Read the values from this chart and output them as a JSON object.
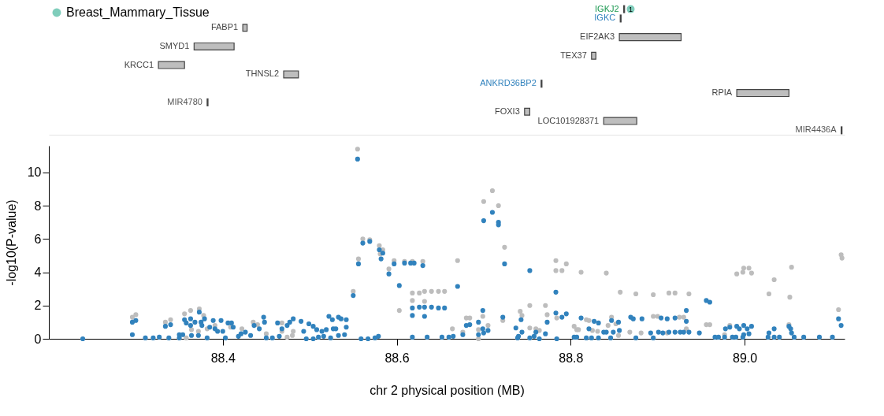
{
  "chart_data": [
    {
      "type": "bar",
      "orientation": "horizontal",
      "xlim": [
        88.2,
        89.115
      ],
      "tick_labels": false,
      "legend": "top left",
      "grid": false,
      "categories": [
        "IGKJ2",
        "IGKC",
        "FABP1",
        "EIF2AK3",
        "SMYD1",
        "TEX37",
        "KRCC1",
        "THNSL2",
        "ANKRD36BP2",
        "RPIA",
        "MIR4780",
        "FOXI3",
        "LOC101928371",
        "MIR4436A"
      ],
      "series": [
        {
          "type": "bar",
          "base": [
            88.861,
            88.857,
            88.423,
            88.856,
            88.367,
            88.824,
            88.326,
            88.47,
            88.766,
            88.991,
            88.382,
            88.747,
            88.838,
            89.111
          ],
          "values": [
            0.001,
            0.001,
            0.005,
            0.071,
            0.046,
            0.005,
            0.03,
            0.017,
            0.001,
            0.06,
            0.001,
            0.006,
            0.038,
            0.001
          ],
          "colors": [
            "#1a9850",
            "#3182bd",
            "#bebebe",
            "#bebebe",
            "#bebebe",
            "#bebebe",
            "#bebebe",
            "#bebebe",
            "#3182bd",
            "#bebebe",
            "#555555",
            "#bebebe",
            "#bebebe",
            "#555555"
          ]
        },
        {
          "type": "scatter",
          "name": "Breast_Mammary_Tissue",
          "color": "#7fcdbb",
          "values": [
            88.869,
            null,
            null,
            null,
            null,
            null,
            null,
            null,
            null,
            null,
            null,
            null,
            null,
            null
          ]
        }
      ],
      "annotations": [
        {
          "text": "1",
          "x": 88.869,
          "y": "IGKJ2"
        }
      ]
    },
    {
      "type": "scatter",
      "marker": "circle",
      "grid": false,
      "xlabel": "chr 2 physical position (MB)",
      "ylabel": "-log10(P-value)",
      "xlim": [
        88.2,
        89.115
      ],
      "xticks": [
        88.4,
        88.6,
        88.8,
        {
          "value": 89,
          "label": "89.0"
        }
      ],
      "ylim": [
        0,
        11.6
      ],
      "yticks": [
        0,
        2,
        4,
        6,
        8,
        10
      ],
      "series": [
        {
          "color": "#bdbdbd",
          "x": [
            88.296,
            88.3,
            88.334,
            88.34,
            88.356,
            88.363,
            88.373,
            88.378,
            88.358,
            88.364,
            88.372,
            88.382,
            88.391,
            88.409,
            88.422,
            88.435,
            88.44,
            88.45,
            88.468,
            88.474,
            88.48,
            88.481,
            88.468,
            88.555,
            88.556,
            88.55,
            88.561,
            88.569,
            88.58,
            88.584,
            88.581,
            88.591,
            88.597,
            88.603,
            88.609,
            88.618,
            88.63,
            88.618,
            88.618,
            88.626,
            88.632,
            88.632,
            88.64,
            88.648,
            88.655,
            88.664,
            88.67,
            88.676,
            88.68,
            88.684,
            88.694,
            88.694,
            88.699,
            88.7,
            88.705,
            88.71,
            88.717,
            88.724,
            88.722,
            88.742,
            88.744,
            88.753,
            88.753,
            88.76,
            88.764,
            88.771,
            88.773,
            88.783,
            88.783,
            88.784,
            88.79,
            88.795,
            88.804,
            88.807,
            88.812,
            88.841,
            88.857,
            88.875,
            88.895,
            88.913,
            88.92,
            88.936,
            88.809,
            88.818,
            88.821,
            88.825,
            88.831,
            88.843,
            88.847,
            88.852,
            88.855,
            88.868,
            88.881,
            88.895,
            88.9,
            88.911,
            88.925,
            88.93,
            88.933,
            88.956,
            88.96,
            88.977,
            88.983,
            88.991,
            88.999,
            89.005,
            89.008,
            88.998,
            89.028,
            89.034,
            89.052,
            89.054,
            89.051,
            89.108,
            89.111,
            89.112
          ],
          "values": [
            1.3,
            1.45,
            1.0,
            1.15,
            1.5,
            1.7,
            1.8,
            1.4,
            0.05,
            0.55,
            0.45,
            0.6,
            0.8,
            0.7,
            0.6,
            1.0,
            0.85,
            0.3,
            0.95,
            0.1,
            0.2,
            0.45,
            0.45,
            11.4,
            4.8,
            2.85,
            6.0,
            5.95,
            5.6,
            5.35,
            5.1,
            4.2,
            4.7,
            1.7,
            4.65,
            4.65,
            4.65,
            2.75,
            2.3,
            2.75,
            2.85,
            2.25,
            2.85,
            2.85,
            2.85,
            0.6,
            4.7,
            0.4,
            1.25,
            1.25,
            0.55,
            0,
            1.35,
            8.25,
            0.8,
            8.9,
            8.0,
            5.5,
            1.1,
            1.65,
            1.4,
            2.0,
            0.65,
            0.6,
            0.5,
            2.0,
            1.45,
            4.7,
            4.1,
            1.25,
            4.1,
            4.5,
            0.75,
            0.55,
            4.0,
            3.95,
            2.8,
            2.7,
            2.65,
            2.75,
            2.75,
            2.7,
            0.55,
            1.15,
            1.1,
            0.5,
            0.45,
            0.8,
            1.3,
            0.9,
            0.2,
            0.4,
            0.35,
            1.35,
            1.35,
            0.35,
            1.3,
            1.3,
            0.6,
            0.85,
            0.85,
            0.25,
            0.8,
            3.9,
            4.25,
            4.25,
            3.95,
            4.0,
            2.7,
            3.55,
            2.5,
            4.3,
            0.85,
            1.75,
            5.05,
            4.85
          ]
        },
        {
          "color": "#3182bd",
          "x": [
            88.239,
            88.296,
            88.3,
            88.296,
            88.311,
            88.32,
            88.327,
            88.334,
            88.34,
            88.338,
            88.35,
            88.35,
            88.354,
            88.356,
            88.358,
            88.363,
            88.363,
            88.364,
            88.368,
            88.372,
            88.373,
            88.375,
            88.376,
            88.379,
            88.382,
            88.385,
            88.389,
            88.391,
            88.394,
            88.398,
            88.4,
            88.403,
            88.406,
            88.41,
            88.412,
            88.418,
            88.421,
            88.426,
            88.432,
            88.436,
            88.442,
            88.447,
            88.448,
            88.45,
            88.457,
            88.463,
            88.465,
            88.468,
            88.474,
            88.477,
            88.481,
            88.49,
            88.493,
            88.496,
            88.499,
            88.504,
            88.504,
            88.508,
            88.51,
            88.514,
            88.516,
            88.519,
            88.522,
            88.524,
            88.526,
            88.527,
            88.53,
            88.533,
            88.533,
            88.536,
            88.54,
            88.542,
            88.542,
            88.55,
            88.555,
            88.556,
            88.559,
            88.561,
            88.567,
            88.569,
            88.575,
            88.579,
            88.58,
            88.582,
            88.584,
            88.591,
            88.597,
            88.603,
            88.609,
            88.616,
            88.62,
            88.63,
            88.618,
            88.618,
            88.618,
            88.626,
            88.632,
            88.632,
            88.635,
            88.64,
            88.648,
            88.652,
            88.655,
            88.66,
            88.665,
            88.67,
            88.676,
            88.68,
            88.684,
            88.694,
            88.694,
            88.699,
            88.699,
            88.7,
            88.7,
            88.705,
            88.71,
            88.717,
            88.717,
            88.722,
            88.724,
            88.737,
            88.739,
            88.74,
            88.743,
            88.744,
            88.753,
            88.753,
            88.758,
            88.76,
            88.764,
            88.771,
            88.773,
            88.783,
            88.783,
            88.784,
            88.79,
            88.795,
            88.804,
            88.807,
            88.812,
            88.818,
            88.821,
            88.824,
            88.827,
            88.832,
            88.832,
            88.838,
            88.841,
            88.846,
            88.847,
            88.849,
            88.855,
            88.856,
            88.869,
            88.872,
            88.875,
            88.882,
            88.892,
            88.895,
            88.901,
            88.904,
            88.906,
            88.911,
            88.913,
            88.92,
            88.92,
            88.926,
            88.93,
            88.933,
            88.933,
            88.936,
            88.948,
            88.956,
            88.96,
            88.966,
            88.97,
            88.977,
            88.978,
            88.983,
            88.986,
            88.99,
            88.991,
            88.994,
            88.998,
            88.999,
            88.999,
            89.003,
            89.005,
            89.008,
            89.027,
            89.028,
            89.034,
            89.034,
            89.04,
            89.051,
            89.053,
            89.054,
            89.057,
            89.068,
            89.086,
            89.101,
            89.108,
            89.111
          ],
          "values": [
            0,
            1.0,
            1.1,
            0.25,
            0.05,
            0.05,
            0.1,
            0.75,
            0.85,
            0.05,
            0.05,
            0.25,
            0.25,
            1.15,
            0.95,
            1.2,
            0.8,
            0.2,
            1.0,
            0.2,
            1.6,
            1.0,
            0.8,
            1.2,
            0.05,
            0.7,
            1.1,
            0.6,
            0.45,
            1.1,
            0.45,
            0.05,
            0.95,
            0.95,
            0.7,
            0.15,
            0.3,
            0.4,
            0.2,
            0.8,
            0.6,
            1.3,
            1.0,
            0.05,
            0.05,
            0.95,
            0.15,
            0.6,
            0.8,
            1.0,
            1.2,
            1.05,
            0.45,
            0,
            0.9,
            0,
            0.75,
            0.55,
            0.1,
            0.45,
            0.15,
            0.55,
            1.35,
            0.05,
            1.15,
            0.6,
            0.6,
            0.2,
            1.3,
            1.2,
            0.25,
            0.7,
            1.15,
            2.6,
            10.8,
            4.5,
            0,
            5.75,
            0,
            5.85,
            0.05,
            0.15,
            5.35,
            4.8,
            5.15,
            3.9,
            4.5,
            3.2,
            4.55,
            4.55,
            4.55,
            4.4,
            1.85,
            1.4,
            0.1,
            1.9,
            1.9,
            1.35,
            0.1,
            1.9,
            1.85,
            0.1,
            1.85,
            0.1,
            0.15,
            3.15,
            0.25,
            0.8,
            0.85,
            1.0,
            0.25,
            1.7,
            0.6,
            7.1,
            0.35,
            0.5,
            7.6,
            7.0,
            6.85,
            1.3,
            4.5,
            0.65,
            0.05,
            0.15,
            1.15,
            0.4,
            4.1,
            0.05,
            0.15,
            0.4,
            0,
            0.3,
            1.0,
            2.8,
            1.55,
            0,
            1.3,
            1.5,
            0.1,
            0.1,
            1.25,
            0.05,
            0.6,
            0.05,
            1.05,
            0.95,
            0.05,
            0.4,
            0.4,
            0.05,
            1.1,
            0.4,
            1.0,
            0.5,
            1.3,
            1.2,
            0.05,
            1.2,
            0.35,
            0.05,
            0.4,
            1.25,
            0.35,
            1.2,
            0.4,
            1.25,
            0.4,
            0.4,
            0.4,
            1.7,
            1.05,
            0.4,
            0.35,
            2.3,
            2.2,
            0.1,
            0.1,
            0.1,
            0.6,
            0.7,
            0.1,
            0.1,
            0.75,
            0.6,
            0.1,
            0.25,
            0.8,
            0.6,
            0.3,
            0.75,
            0.1,
            0.35,
            0.6,
            0.1,
            0.1,
            0.75,
            0.6,
            0.35,
            0.1,
            0.1,
            0.1,
            0.1,
            1.2,
            0.8
          ]
        }
      ]
    }
  ]
}
